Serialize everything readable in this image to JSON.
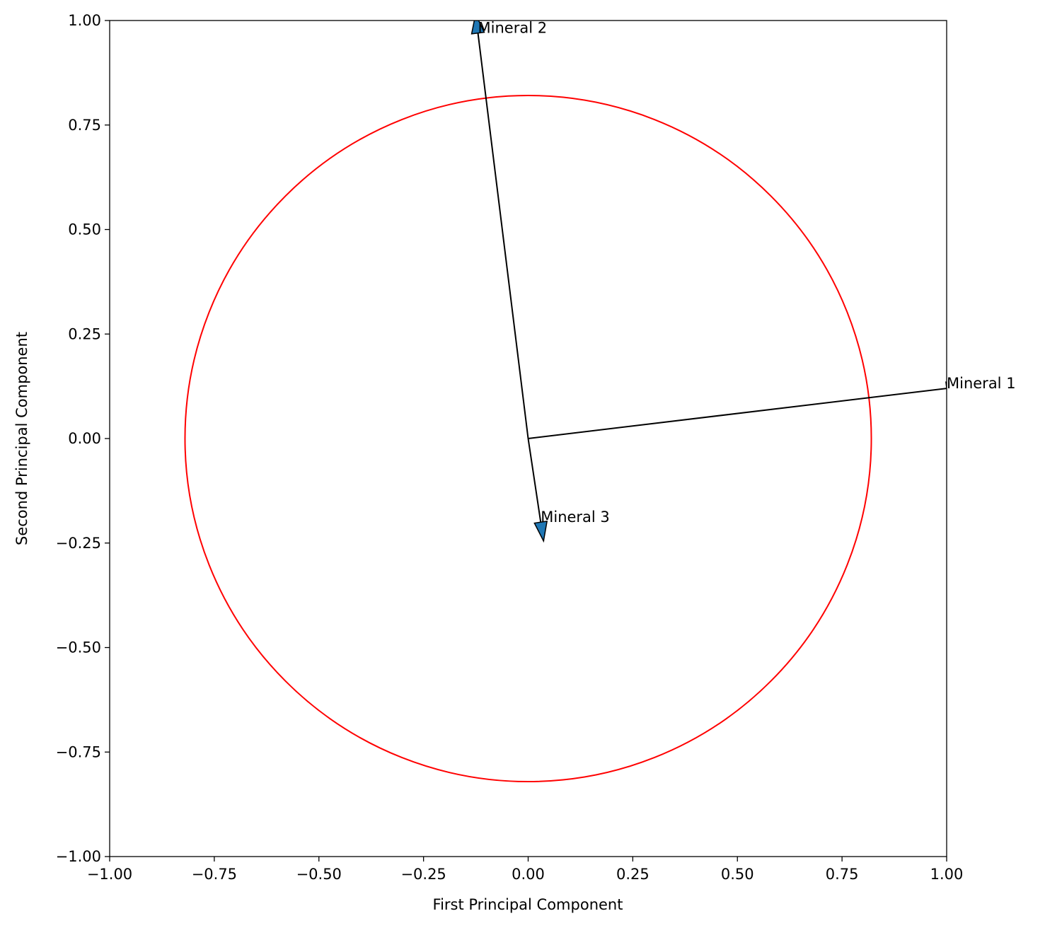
{
  "chart_data": {
    "type": "biplot",
    "xlabel": "First Principal Component",
    "ylabel": "Second Principal Component",
    "vectors": [
      {
        "name": "Mineral 1",
        "x": 1.0,
        "y": 0.12
      },
      {
        "name": "Mineral 2",
        "x": -0.12,
        "y": 0.97
      },
      {
        "name": "Mineral 3",
        "x": 0.03,
        "y": -0.2
      }
    ],
    "arrow_color": "#1f77b4",
    "line_color": "#000000",
    "circle_radius": 0.82,
    "circle_color": "#ff0000",
    "xlim": [
      -1,
      1
    ],
    "ylim": [
      -1,
      1
    ],
    "xticks": [
      {
        "value": -1,
        "label": "−1.00"
      },
      {
        "value": -0.75,
        "label": "−0.75"
      },
      {
        "value": -0.5,
        "label": "−0.50"
      },
      {
        "value": -0.25,
        "label": "−0.25"
      },
      {
        "value": 0,
        "label": "0.00"
      },
      0.25,
      {
        "value": 0.5,
        "label": "0.50"
      },
      0.75,
      {
        "value": 1,
        "label": "1.00"
      }
    ],
    "yticks": [
      {
        "value": -1,
        "label": "−1.00"
      },
      {
        "value": -0.75,
        "label": "−0.75"
      },
      {
        "value": -0.5,
        "label": "−0.50"
      },
      {
        "value": -0.25,
        "label": "−0.25"
      },
      {
        "value": 0,
        "label": "0.00"
      },
      0.25,
      {
        "value": 0.5,
        "label": "0.50"
      },
      0.75,
      {
        "value": 1,
        "label": "1.00"
      }
    ]
  }
}
